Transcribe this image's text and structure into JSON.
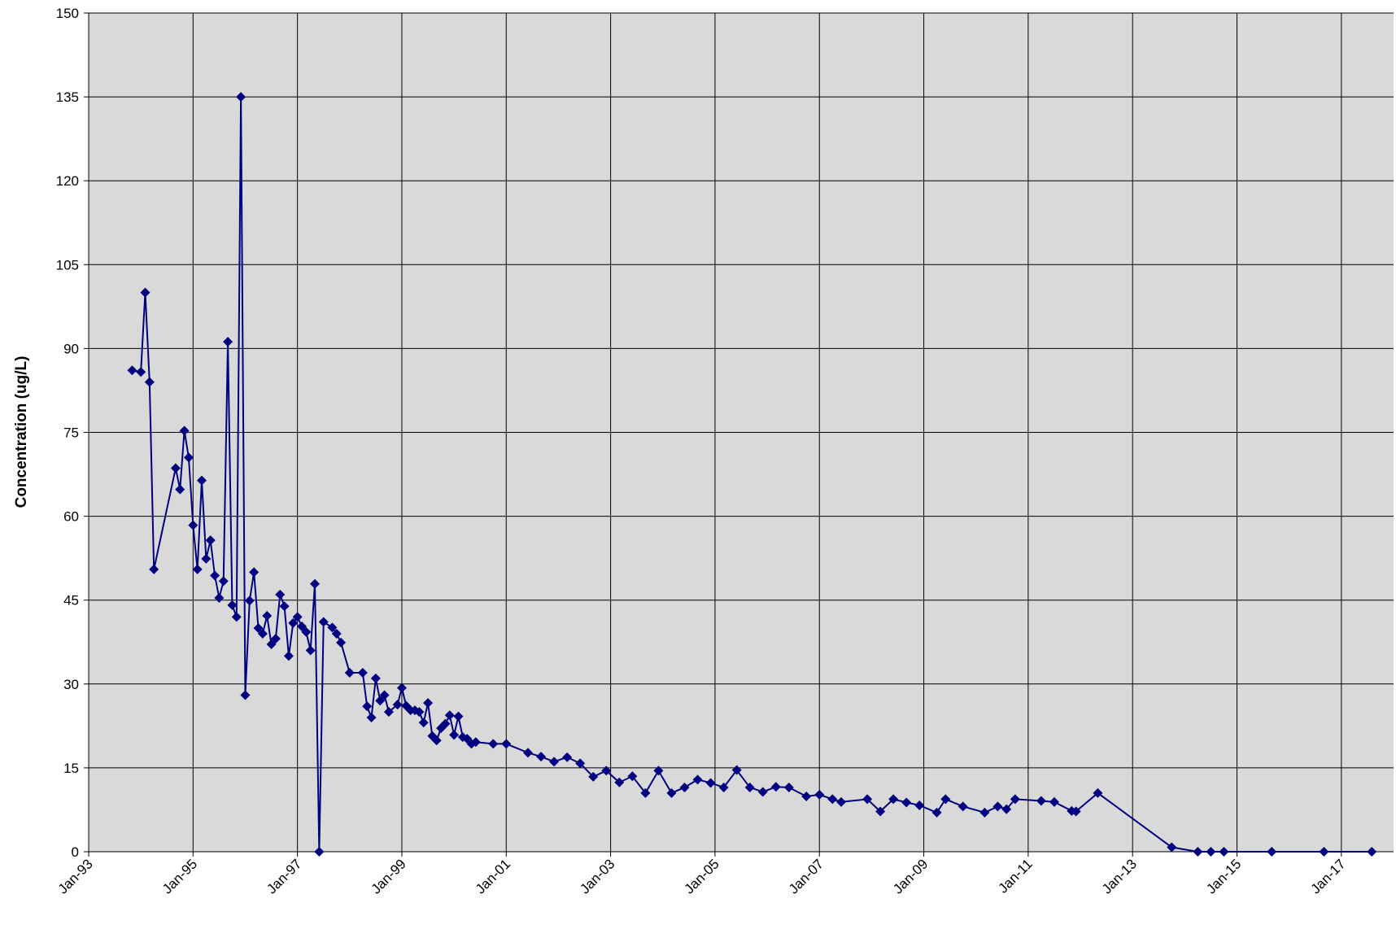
{
  "chart_data": {
    "type": "line",
    "y_label": "Concentration  (ug/L)",
    "x": [
      "1993-11",
      "1994-01",
      "1994-02",
      "1994-03",
      "1994-04",
      "1994-09",
      "1994-10",
      "1994-11",
      "1994-12",
      "1995-01",
      "1995-02",
      "1995-03",
      "1995-04",
      "1995-05",
      "1995-06",
      "1995-07",
      "1995-08",
      "1995-09",
      "1995-10",
      "1995-11",
      "1995-12",
      "1996-01",
      "1996-02",
      "1996-03",
      "1996-04",
      "1996-05",
      "1996-06",
      "1996-07",
      "1996-08",
      "1996-09",
      "1996-10",
      "1996-11",
      "1996-12",
      "1997-01",
      "1997-02",
      "1997-03",
      "1997-04",
      "1997-05",
      "1997-06",
      "1997-07",
      "1997-09",
      "1997-10",
      "1997-11",
      "1998-01",
      "1998-04",
      "1998-05",
      "1998-06",
      "1998-07",
      "1998-08",
      "1998-09",
      "1998-10",
      "1998-12",
      "1999-01",
      "1999-02",
      "1999-03",
      "1999-04",
      "1999-05",
      "1999-06",
      "1999-07",
      "1999-08",
      "1999-09",
      "1999-10",
      "1999-11",
      "1999-12",
      "2000-01",
      "2000-02",
      "2000-03",
      "2000-04",
      "2000-05",
      "2000-06",
      "2000-10",
      "2001-01",
      "2001-06",
      "2001-09",
      "2001-12",
      "2002-03",
      "2002-06",
      "2002-09",
      "2002-12",
      "2003-03",
      "2003-06",
      "2003-09",
      "2003-12",
      "2004-03",
      "2004-06",
      "2004-09",
      "2004-12",
      "2005-03",
      "2005-06",
      "2005-09",
      "2005-12",
      "2006-03",
      "2006-06",
      "2006-10",
      "2007-01",
      "2007-04",
      "2007-06",
      "2007-12",
      "2008-03",
      "2008-06",
      "2008-09",
      "2008-12",
      "2009-04",
      "2009-06",
      "2009-10",
      "2010-03",
      "2010-06",
      "2010-08",
      "2010-10",
      "2011-04",
      "2011-07",
      "2011-11",
      "2011-12",
      "2012-05",
      "2013-10",
      "2014-04",
      "2014-07",
      "2014-10",
      "2015-09",
      "2016-09",
      "2017-08"
    ],
    "series": [
      {
        "name": "Concentration",
        "color": "#000080",
        "values": [
          86.1,
          85.8,
          100,
          84,
          50.5,
          68.6,
          64.8,
          75.3,
          70.5,
          58.4,
          50.5,
          66.4,
          52.4,
          55.7,
          49.4,
          45.4,
          48.4,
          91.2,
          44.1,
          42,
          135,
          28,
          44.9,
          50,
          40,
          39,
          42.2,
          37.1,
          38.1,
          46,
          43.9,
          35,
          40.9,
          42,
          40.3,
          39.3,
          36,
          47.9,
          0,
          41.1,
          40.1,
          39,
          37.4,
          32,
          32,
          26,
          24,
          31,
          27,
          28,
          25,
          26.3,
          29.3,
          26.1,
          25.3,
          25.3,
          25,
          23.1,
          26.6,
          20.7,
          19.9,
          22.1,
          22.9,
          24.4,
          20.9,
          24.2,
          20.5,
          20.2,
          19.3,
          19.6,
          19.3,
          19.3,
          17.7,
          17,
          16.1,
          16.9,
          15.8,
          13.4,
          14.5,
          12.4,
          13.5,
          10.5,
          14.5,
          10.5,
          11.5,
          12.9,
          12.3,
          11.5,
          14.6,
          11.5,
          10.7,
          11.6,
          11.5,
          9.9,
          10.2,
          9.4,
          8.9,
          9.4,
          7.2,
          9.4,
          8.8,
          8.3,
          7,
          9.4,
          8.1,
          7,
          8.1,
          7.6,
          9.4,
          9.1,
          8.9,
          7.3,
          7.2,
          10.5,
          0.8,
          0,
          0,
          0,
          0,
          0,
          0
        ]
      }
    ],
    "xlim": [
      "1993-01",
      "2018-01"
    ],
    "xticks": [
      {
        "value": "1993-01",
        "label": "Jan-93"
      },
      {
        "value": "1995-01",
        "label": "Jan-95"
      },
      {
        "value": "1997-01",
        "label": "Jan-97"
      },
      {
        "value": "1999-01",
        "label": "Jan-99"
      },
      {
        "value": "2001-01",
        "label": "Jan-01"
      },
      {
        "value": "2003-01",
        "label": "Jan-03"
      },
      {
        "value": "2005-01",
        "label": "Jan-05"
      },
      {
        "value": "2007-01",
        "label": "Jan-07"
      },
      {
        "value": "2009-01",
        "label": "Jan-09"
      },
      {
        "value": "2011-01",
        "label": "Jan-11"
      },
      {
        "value": "2013-01",
        "label": "Jan-13"
      },
      {
        "value": "2015-01",
        "label": "Jan-15"
      },
      {
        "value": "2017-01",
        "label": "Jan-17"
      }
    ],
    "ylim": [
      0,
      150
    ],
    "yticks": [
      0,
      15,
      30,
      45,
      60,
      75,
      90,
      105,
      120,
      135,
      150
    ],
    "grid": true
  }
}
